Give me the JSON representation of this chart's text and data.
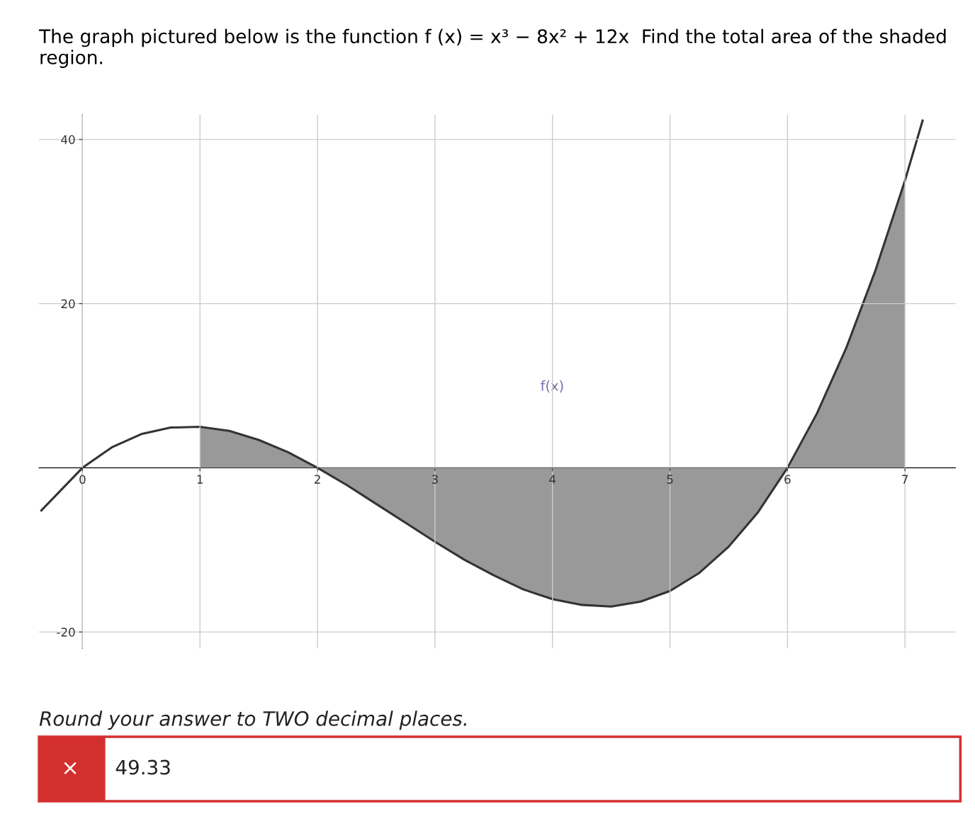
{
  "chart_data": {
    "type": "line",
    "title": "The graph pictured below is the function f (x) = x³ − 8x² + 12x  Find the total area of the shaded region.",
    "series": [
      {
        "type": "area",
        "color": "#999999",
        "x": [
          1,
          1.25,
          1.5,
          1.75,
          2,
          2.25,
          2.5,
          2.75,
          3,
          3.25,
          3.5,
          3.75,
          4,
          4.25,
          4.5,
          4.75,
          5,
          5.25,
          5.5,
          5.75,
          6,
          6.25,
          6.5,
          6.75,
          7
        ],
        "values": [
          5,
          4.5,
          3.4,
          1.9,
          0,
          -2.1,
          -4.4,
          -6.7,
          -9,
          -11.2,
          -13.1,
          -14.8,
          -16,
          -16.7,
          -16.9,
          -16.3,
          -15,
          -12.8,
          -9.6,
          -5.4,
          0,
          6.6,
          14.6,
          24.1,
          35
        ]
      },
      {
        "name": "f(x)",
        "color": "#333333",
        "x": [
          -0.35,
          0,
          0.25,
          0.5,
          0.75,
          1,
          1.25,
          1.5,
          1.75,
          2,
          2.25,
          2.5,
          2.75,
          3,
          3.25,
          3.5,
          3.75,
          4,
          4.25,
          4.5,
          4.75,
          5,
          5.25,
          5.5,
          5.75,
          6,
          6.25,
          6.5,
          6.75,
          7,
          7.15
        ],
        "values": [
          -5.2,
          0,
          2.5,
          4.1,
          4.9,
          5,
          4.5,
          3.4,
          1.9,
          0,
          -2.1,
          -4.4,
          -6.7,
          -9,
          -11.2,
          -13.1,
          -14.8,
          -16,
          -16.7,
          -16.9,
          -16.3,
          -15,
          -12.8,
          -9.6,
          -5.4,
          0,
          6.6,
          14.6,
          24.1,
          35,
          42.3
        ]
      }
    ],
    "xlim": [
      -0.37,
      7.43
    ],
    "ylim": [
      -22,
      43
    ],
    "xticks": [
      0,
      1,
      2,
      3,
      4,
      5,
      6,
      7
    ],
    "yticks": [
      -20,
      20,
      40
    ],
    "grid": true,
    "legend": false,
    "marker": "none",
    "line_style": "solid",
    "annotations": [
      "Round your answer to TWO decimal places.",
      "×",
      "49.33"
    ]
  }
}
